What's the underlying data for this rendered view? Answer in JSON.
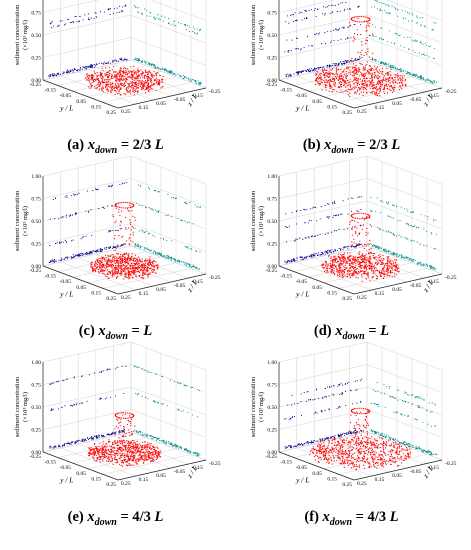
{
  "colors": {
    "center_points": "#ff0000",
    "y_projection": "#00008b",
    "z_projection": "#008b8b",
    "grid": "#c8c8c8",
    "axis": "#222222"
  },
  "axes": {
    "zlabel_line1": "sediment concentration",
    "zlabel_line2": "(×10³ mg/l)",
    "ylabel": "y / L",
    "xlabel": "z / L",
    "z_ticks": [
      "0.00",
      "0.25",
      "0.50",
      "0.75",
      "1.00"
    ],
    "y_ticks": [
      "-0.25",
      "-0.15",
      "-0.05",
      "0.05",
      "0.15",
      "0.25"
    ],
    "x_ticks": [
      "-0.25",
      "-0.15",
      "-0.05",
      "0.05",
      "0.15",
      "0.25"
    ]
  },
  "panels": [
    {
      "label": "(a)",
      "var": "x",
      "sub": "down",
      "value": "= 2/3 L"
    },
    {
      "label": "(b)",
      "var": "x",
      "sub": "down",
      "value": "= 2/3 L"
    },
    {
      "label": "(c)",
      "var": "x",
      "sub": "down",
      "value": "= L"
    },
    {
      "label": "(d)",
      "var": "x",
      "sub": "down",
      "value": "= L"
    },
    {
      "label": "(e)",
      "var": "x",
      "sub": "down",
      "value": "= 4/3 L"
    },
    {
      "label": "(f)",
      "var": "x",
      "sub": "down",
      "value": "= 4/3 L"
    }
  ],
  "chart_data": [
    {
      "type": "scatter",
      "panel": "(a)",
      "x_down": "2/3 L",
      "xlabel": "z / L",
      "ylabel": "y / L",
      "zlabel": "sediment concentration (×10³ mg/l)",
      "xlim": [
        -0.25,
        0.25
      ],
      "ylim": [
        -0.25,
        0.25
      ],
      "zlim": [
        0,
        1
      ],
      "cloud_radius": 0.17,
      "column_max": 0.0,
      "projection_levels": [
        0.02,
        0.57,
        0.62
      ]
    },
    {
      "type": "scatter",
      "panel": "(b)",
      "x_down": "2/3 L",
      "xlabel": "z / L",
      "ylabel": "y / L",
      "zlabel": "sediment concentration (×10³ mg/l)",
      "xlim": [
        -0.25,
        0.25
      ],
      "ylim": [
        -0.25,
        0.25
      ],
      "zlim": [
        0,
        1
      ],
      "cloud_radius": 0.2,
      "column_max": 0.72,
      "projection_levels": [
        0.02,
        0.3,
        0.42,
        0.62,
        0.7
      ]
    },
    {
      "type": "scatter",
      "panel": "(c)",
      "x_down": "L",
      "xlabel": "z / L",
      "ylabel": "y / L",
      "zlabel": "sediment concentration (×10³ mg/l)",
      "xlim": [
        -0.25,
        0.25
      ],
      "ylim": [
        -0.25,
        0.25
      ],
      "zlim": [
        0,
        1
      ],
      "cloud_radius": 0.15,
      "column_max": 0.72,
      "projection_levels": [
        0.02,
        0.22,
        0.5,
        0.72
      ]
    },
    {
      "type": "scatter",
      "panel": "(d)",
      "x_down": "L",
      "xlabel": "z / L",
      "ylabel": "y / L",
      "zlabel": "sediment concentration (×10³ mg/l)",
      "xlim": [
        -0.25,
        0.25
      ],
      "ylim": [
        -0.25,
        0.25
      ],
      "zlim": [
        0,
        1
      ],
      "cloud_radius": 0.17,
      "column_max": 0.6,
      "projection_levels": [
        0.02,
        0.25,
        0.42,
        0.57
      ]
    },
    {
      "type": "scatter",
      "panel": "(e)",
      "x_down": "4/3 L",
      "xlabel": "z / L",
      "ylabel": "y / L",
      "zlabel": "sediment concentration (×10³ mg/l)",
      "xlim": [
        -0.25,
        0.25
      ],
      "ylim": [
        -0.25,
        0.25
      ],
      "zlim": [
        0,
        1
      ],
      "cloud_radius": 0.16,
      "column_max": 0.45,
      "projection_levels": [
        0.02,
        0.45,
        0.75
      ]
    },
    {
      "type": "scatter",
      "panel": "(f)",
      "x_down": "4/3 L",
      "xlabel": "z / L",
      "ylabel": "y / L",
      "zlabel": "sediment concentration (×10³ mg/l)",
      "xlim": [
        -0.25,
        0.25
      ],
      "ylim": [
        -0.25,
        0.25
      ],
      "zlim": [
        0,
        1
      ],
      "cloud_radius": 0.22,
      "column_max": 0.5,
      "projection_levels": [
        0.02,
        0.35,
        0.5,
        0.6
      ]
    }
  ]
}
